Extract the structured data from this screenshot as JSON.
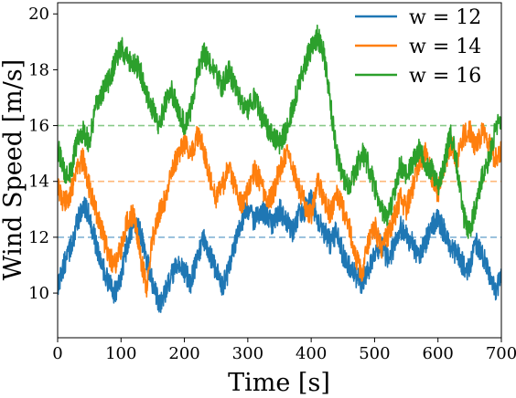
{
  "chart_data": {
    "type": "line",
    "xlabel": "Time [s]",
    "ylabel": "Wind Speed [m/s]",
    "xlim": [
      0,
      700
    ],
    "ylim": [
      8.4,
      20.4
    ],
    "xticks": [
      0,
      100,
      200,
      300,
      400,
      500,
      600,
      700
    ],
    "yticks": [
      10,
      12,
      14,
      16,
      18,
      20
    ],
    "grid": false,
    "legend_position": "top-right",
    "reference_lines": [
      {
        "y": 12,
        "color": "#1f77b4",
        "style": "dashed"
      },
      {
        "y": 14,
        "color": "#ff7f0e",
        "style": "dashed"
      },
      {
        "y": 16,
        "color": "#2ca02c",
        "style": "dashed"
      }
    ],
    "series": [
      {
        "name": "w = 12",
        "color": "#1f77b4",
        "x": [
          0,
          10,
          20,
          30,
          40,
          50,
          60,
          70,
          80,
          90,
          100,
          110,
          120,
          130,
          140,
          150,
          160,
          170,
          180,
          190,
          200,
          210,
          220,
          230,
          240,
          250,
          260,
          270,
          280,
          290,
          300,
          310,
          320,
          330,
          340,
          350,
          360,
          370,
          380,
          390,
          400,
          410,
          420,
          430,
          440,
          450,
          460,
          470,
          480,
          490,
          500,
          510,
          520,
          530,
          540,
          550,
          560,
          570,
          580,
          590,
          600,
          610,
          620,
          630,
          640,
          650,
          660,
          670,
          680,
          690,
          700
        ],
        "y": [
          10.3,
          11.0,
          11.6,
          12.4,
          13.2,
          12.8,
          11.8,
          11.0,
          10.4,
          10.0,
          10.6,
          11.8,
          12.6,
          12.2,
          11.2,
          10.3,
          9.6,
          10.0,
          10.6,
          11.0,
          10.8,
          10.4,
          11.2,
          12.0,
          11.4,
          10.8,
          10.3,
          10.8,
          11.8,
          12.6,
          13.0,
          12.6,
          13.0,
          12.8,
          12.4,
          13.0,
          12.6,
          12.2,
          12.8,
          13.0,
          13.4,
          12.6,
          12.2,
          11.8,
          12.2,
          11.4,
          11.0,
          10.6,
          10.3,
          10.8,
          11.4,
          11.8,
          11.2,
          11.6,
          12.4,
          12.0,
          11.8,
          11.2,
          11.8,
          12.4,
          12.6,
          12.2,
          11.6,
          11.4,
          11.0,
          10.8,
          11.8,
          11.4,
          10.8,
          10.0,
          10.6
        ]
      },
      {
        "name": "w = 14",
        "color": "#ff7f0e",
        "x": [
          0,
          10,
          20,
          30,
          40,
          50,
          60,
          70,
          80,
          90,
          100,
          110,
          120,
          130,
          140,
          150,
          160,
          170,
          180,
          190,
          200,
          210,
          220,
          230,
          240,
          250,
          260,
          270,
          280,
          290,
          300,
          310,
          320,
          330,
          340,
          350,
          360,
          370,
          380,
          390,
          400,
          410,
          420,
          430,
          440,
          450,
          460,
          470,
          480,
          490,
          500,
          510,
          520,
          530,
          540,
          550,
          560,
          570,
          580,
          590,
          600,
          610,
          620,
          630,
          640,
          650,
          660,
          670,
          680,
          690,
          700
        ],
        "y": [
          13.8,
          13.2,
          13.6,
          14.4,
          14.8,
          13.8,
          13.0,
          12.2,
          11.4,
          11.0,
          11.6,
          12.6,
          12.8,
          11.4,
          10.2,
          12.0,
          12.8,
          13.4,
          14.4,
          15.0,
          15.4,
          15.0,
          15.6,
          15.2,
          14.2,
          13.4,
          13.8,
          14.6,
          13.8,
          13.2,
          13.6,
          14.4,
          14.0,
          13.2,
          13.6,
          14.4,
          15.0,
          14.6,
          13.8,
          13.2,
          12.8,
          14.0,
          13.4,
          12.8,
          13.6,
          13.0,
          12.4,
          11.4,
          10.6,
          11.8,
          12.4,
          11.6,
          12.0,
          12.6,
          13.4,
          13.0,
          13.8,
          14.6,
          15.0,
          14.2,
          13.6,
          14.6,
          15.4,
          14.8,
          15.6,
          15.8,
          15.2,
          15.8,
          15.4,
          14.8,
          15.2
        ]
      },
      {
        "name": "w = 16",
        "color": "#2ca02c",
        "x": [
          0,
          10,
          20,
          30,
          40,
          50,
          60,
          70,
          80,
          90,
          100,
          110,
          120,
          130,
          140,
          150,
          160,
          170,
          180,
          190,
          200,
          210,
          220,
          230,
          240,
          250,
          260,
          270,
          280,
          290,
          300,
          310,
          320,
          330,
          340,
          350,
          360,
          370,
          380,
          390,
          400,
          410,
          420,
          430,
          440,
          450,
          460,
          470,
          480,
          490,
          500,
          510,
          520,
          530,
          540,
          550,
          560,
          570,
          580,
          590,
          600,
          610,
          620,
          630,
          640,
          650,
          660,
          670,
          680,
          690,
          700
        ],
        "y": [
          15.2,
          14.4,
          14.2,
          15.4,
          15.8,
          15.4,
          16.6,
          17.2,
          17.6,
          18.2,
          18.8,
          18.4,
          18.2,
          18.0,
          17.2,
          16.6,
          16.0,
          16.8,
          17.2,
          16.6,
          16.0,
          16.6,
          17.8,
          18.6,
          18.2,
          17.8,
          17.4,
          18.0,
          17.4,
          16.8,
          16.6,
          17.0,
          16.4,
          16.0,
          15.6,
          15.4,
          15.8,
          16.6,
          17.4,
          18.2,
          18.8,
          19.2,
          18.6,
          16.8,
          15.0,
          14.2,
          13.8,
          14.4,
          15.0,
          14.6,
          13.8,
          13.0,
          12.6,
          13.4,
          14.6,
          14.2,
          14.6,
          15.2,
          14.6,
          14.4,
          13.8,
          14.6,
          15.8,
          14.6,
          12.8,
          12.2,
          13.2,
          14.2,
          14.8,
          15.8,
          16.2
        ]
      }
    ]
  }
}
